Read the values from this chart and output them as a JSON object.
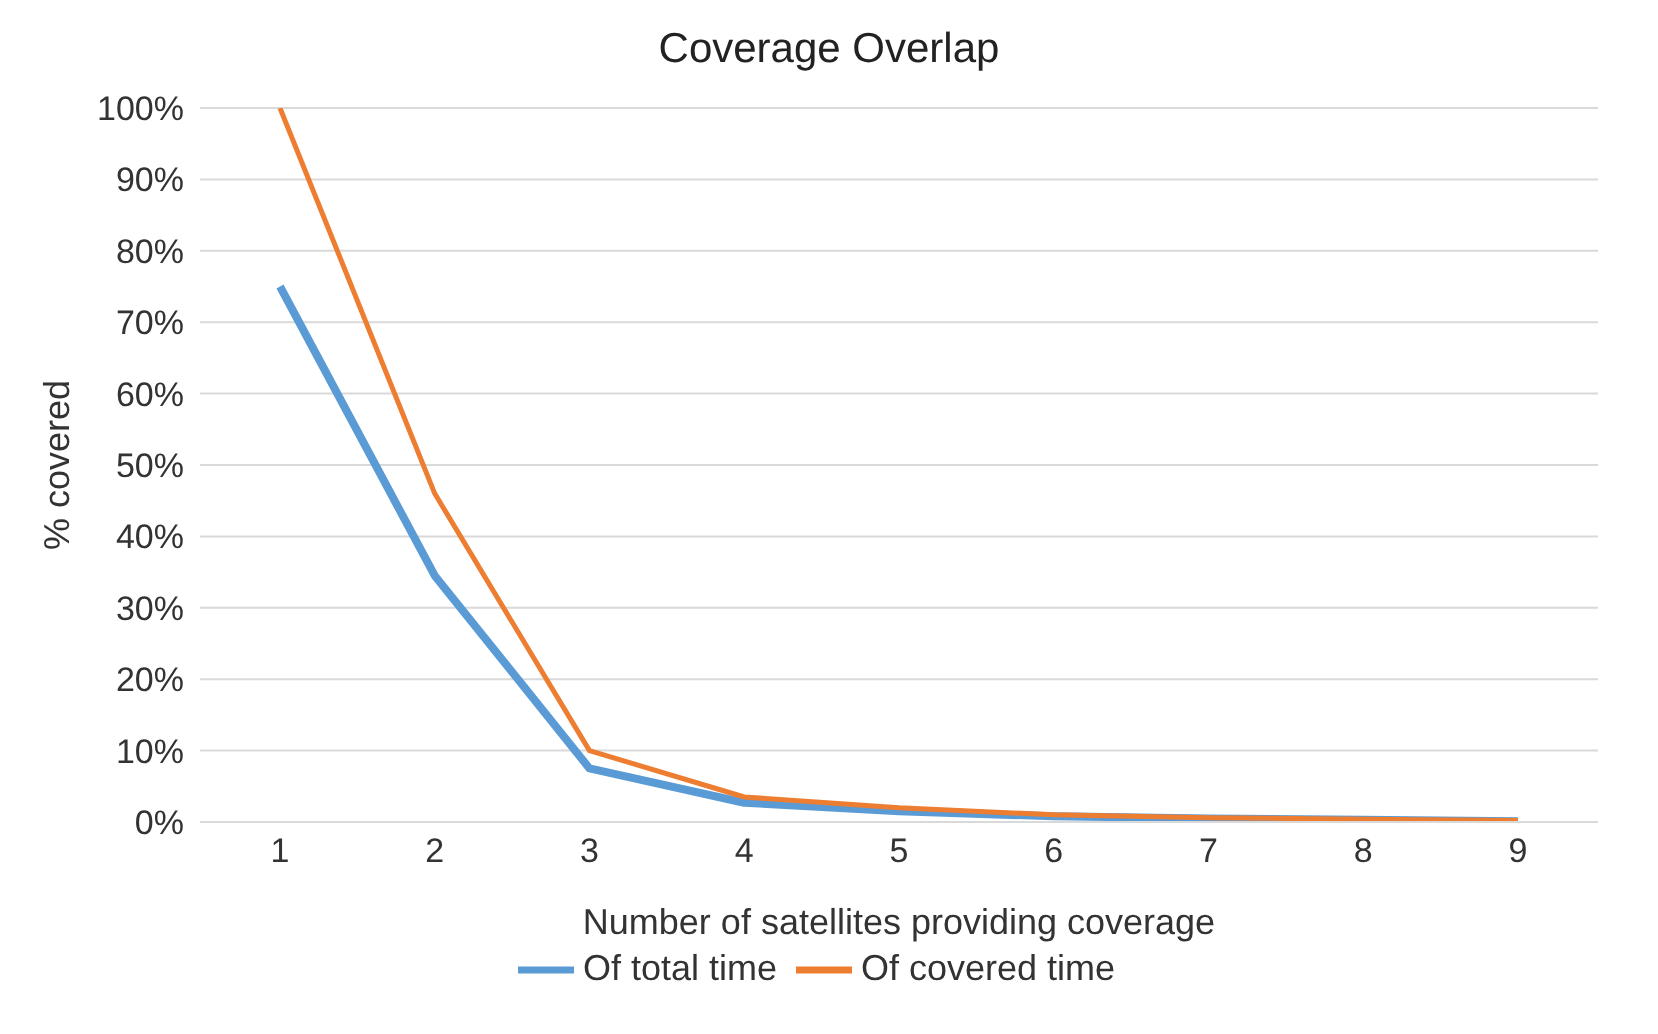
{
  "chart_data": {
    "type": "line",
    "title": "Coverage Overlap",
    "xlabel": "Number of satellites providing coverage",
    "ylabel": "% covered",
    "categories": [
      "1",
      "2",
      "3",
      "4",
      "5",
      "6",
      "7",
      "8",
      "9"
    ],
    "series": [
      {
        "name": "Of total time",
        "color": "#5b9bd5",
        "values": [
          75,
          34.5,
          7.5,
          2.7,
          1.5,
          0.8,
          0.5,
          0.3,
          0.1
        ]
      },
      {
        "name": "Of covered time",
        "color": "#ed7d31",
        "values": [
          100,
          46,
          10,
          3.5,
          2,
          1,
          0.6,
          0.4,
          0.2
        ]
      }
    ],
    "ylim": [
      0,
      100
    ],
    "yticks": [
      {
        "value": 0,
        "label": "0%"
      },
      {
        "value": 10,
        "label": "10%"
      },
      {
        "value": 20,
        "label": "20%"
      },
      {
        "value": 30,
        "label": "30%"
      },
      {
        "value": 40,
        "label": "40%"
      },
      {
        "value": 50,
        "label": "50%"
      },
      {
        "value": 60,
        "label": "60%"
      },
      {
        "value": 70,
        "label": "70%"
      },
      {
        "value": 80,
        "label": "80%"
      },
      {
        "value": 90,
        "label": "90%"
      },
      {
        "value": 100,
        "label": "100%"
      }
    ],
    "grid": "y",
    "legend": "bottom",
    "marker": "none",
    "line_style": "solid"
  }
}
